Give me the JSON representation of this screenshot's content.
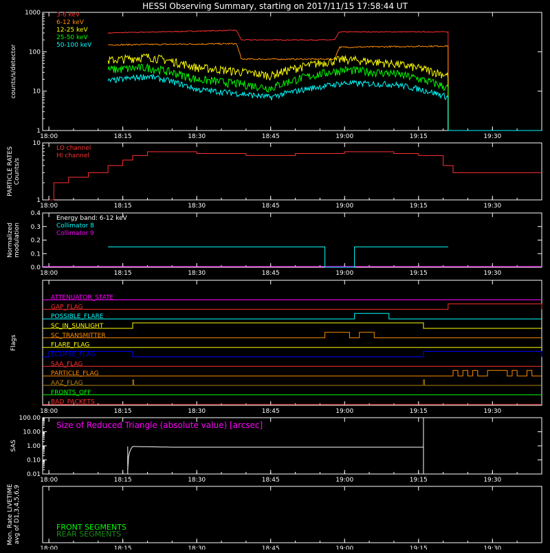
{
  "title": "HESSI Observing Summary, starting on 2017/11/15 17:58:44 UT",
  "time_ticks": [
    "18:00",
    "18:15",
    "18:30",
    "18:45",
    "19:00",
    "19:15",
    "19:30"
  ],
  "chart_data": [
    {
      "type": "line",
      "name": "count-rates",
      "ylabel": "counts/s/detector",
      "yscale": "log",
      "ylim": [
        1,
        1000
      ],
      "yticks": [
        "1",
        "10",
        "100",
        "1000"
      ],
      "series": [
        {
          "name": "3-6 keV",
          "color": "#ff3030",
          "x": [
            "18:12",
            "18:38",
            "18:39",
            "18:58",
            "18:59",
            "19:21",
            "19:21",
            "19:40"
          ],
          "y": [
            300,
            350,
            200,
            200,
            320,
            320,
            1,
            1
          ]
        },
        {
          "name": "6-12 keV",
          "color": "#ff8c00",
          "x": [
            "18:12",
            "18:38",
            "18:39",
            "18:58",
            "18:59",
            "19:21",
            "19:21",
            "19:40"
          ],
          "y": [
            150,
            160,
            65,
            65,
            130,
            140,
            1,
            1
          ]
        },
        {
          "name": "12-25 keV",
          "color": "#ffff00",
          "x": [
            "18:12",
            "18:20",
            "18:30",
            "18:45",
            "19:00",
            "19:10",
            "19:21",
            "19:21",
            "19:40"
          ],
          "y": [
            60,
            75,
            40,
            25,
            65,
            50,
            25,
            1,
            1
          ]
        },
        {
          "name": "25-50 keV",
          "color": "#00ff00",
          "x": [
            "18:12",
            "18:20",
            "18:30",
            "18:45",
            "19:00",
            "19:10",
            "19:21",
            "19:21",
            "19:40"
          ],
          "y": [
            35,
            40,
            20,
            12,
            35,
            28,
            12,
            1,
            1
          ]
        },
        {
          "name": "50-100 keV",
          "color": "#00ffff",
          "x": [
            "18:12",
            "18:20",
            "18:30",
            "18:45",
            "19:00",
            "19:10",
            "19:21",
            "19:21",
            "19:40"
          ],
          "y": [
            18,
            24,
            11,
            7,
            16,
            15,
            7,
            1,
            1
          ]
        }
      ]
    },
    {
      "type": "line",
      "name": "particle-rates",
      "ylabel": "PARTICLE RATES Counts/s",
      "yscale": "log",
      "ylim": [
        1,
        10
      ],
      "yticks": [
        "1",
        "10"
      ],
      "series": [
        {
          "name": "LO channel",
          "color": "#ff3030",
          "x": [],
          "y": []
        },
        {
          "name": "HI channel",
          "color": "#ff3030",
          "x": [
            "18:00",
            "18:01",
            "18:04",
            "18:08",
            "18:12",
            "18:15",
            "18:17",
            "18:20",
            "18:30",
            "18:40",
            "18:50",
            "19:00",
            "19:10",
            "19:15",
            "19:20",
            "19:22",
            "19:30",
            "19:40"
          ],
          "y": [
            1,
            2,
            2.5,
            3,
            4,
            5,
            6,
            7,
            6.5,
            6,
            6.5,
            7,
            6.5,
            6,
            4,
            3,
            3,
            3
          ]
        }
      ]
    },
    {
      "type": "line",
      "name": "modulation",
      "ylabel": "Normalized modulation",
      "ylim": [
        0,
        0.4
      ],
      "yticks": [
        "0.0",
        "0.1",
        "0.2",
        "0.3",
        "0.4"
      ],
      "annotation": "Energy band: 6-12 keV",
      "series": [
        {
          "name": "Collimator 8",
          "color": "#00ffff",
          "x": [
            "18:12",
            "18:56",
            "18:56",
            "19:02",
            "19:02",
            "19:21"
          ],
          "y": [
            0.15,
            0.15,
            0,
            0,
            0.15,
            0.15
          ]
        },
        {
          "name": "Collimator 9",
          "color": "#ff00ff",
          "x": [],
          "y": []
        }
      ]
    },
    {
      "type": "line",
      "name": "flags",
      "ylabel": "Flags",
      "flags": [
        {
          "name": "ATTENUATOR_STATE",
          "color": "#ff00ff",
          "segments": []
        },
        {
          "name": "GAP_FLAG",
          "color": "#ff3030",
          "segments": [
            [
              "19:21",
              "19:40"
            ]
          ]
        },
        {
          "name": "POSSIBLE_FLARE",
          "color": "#00ffff",
          "segments": [
            [
              "19:02",
              "19:09"
            ]
          ]
        },
        {
          "name": "SC_IN_SUNLIGHT",
          "color": "#ffff00",
          "segments": [
            [
              "18:17",
              "19:16"
            ]
          ]
        },
        {
          "name": "SC_TRANSMITTER",
          "color": "#ff8c00",
          "segments": [
            [
              "18:56",
              "19:01"
            ],
            [
              "19:03",
              "19:06"
            ]
          ]
        },
        {
          "name": "FLARE_FLAG",
          "color": "#ffff00",
          "segments": []
        },
        {
          "name": "ECLIPSE_FLAG",
          "color": "#0000ff",
          "segments": [
            [
              "18:00",
              "18:17"
            ],
            [
              "19:16",
              "19:40"
            ]
          ]
        },
        {
          "name": "SAA_FLAG",
          "color": "#ff3030",
          "segments": []
        },
        {
          "name": "PARTICLE_FLAG",
          "color": "#ff8c00",
          "segments": [
            [
              "19:22",
              "19:23"
            ],
            [
              "19:24",
              "19:25"
            ],
            [
              "19:26",
              "19:27"
            ],
            [
              "19:29",
              "19:33"
            ],
            [
              "19:34",
              "19:35"
            ],
            [
              "19:37",
              "19:38"
            ]
          ]
        },
        {
          "name": "AAZ_FLAG",
          "color": "#b8860b",
          "segments": [
            [
              "18:17",
              "18:17"
            ],
            [
              "19:16",
              "19:16"
            ]
          ]
        },
        {
          "name": "FRONTS_OFF",
          "color": "#00ff00",
          "segments": []
        },
        {
          "name": "BAD_PACKETS",
          "color": "#ff3030",
          "segments": []
        }
      ]
    },
    {
      "type": "line",
      "name": "sas",
      "ylabel": "SAS",
      "yscale": "log",
      "ylim": [
        0.01,
        100
      ],
      "yticks": [
        "0.01",
        "0.10",
        "1.00",
        "10.00",
        "100.00"
      ],
      "annotation": "Size of Reduced Triangle (absolute value) [arcsec]",
      "series": [
        {
          "name": "",
          "color": "#ffffff",
          "x": [
            "18:16",
            "18:17",
            "18:25",
            "18:40",
            "19:00",
            "19:10",
            "19:16"
          ],
          "y": [
            0.02,
            0.9,
            0.8,
            0.8,
            0.8,
            0.8,
            0.8
          ]
        }
      ]
    },
    {
      "type": "line",
      "name": "livetime",
      "ylabel": "Mon. Rate LIVETIME avg of D1,3,4,5,6,9",
      "series": [
        {
          "name": "FRONT SEGMENTS",
          "color": "#00ff00",
          "x": [],
          "y": []
        },
        {
          "name": "REAR SEGMENTS",
          "color": "#1a8c1a",
          "x": [],
          "y": []
        }
      ]
    }
  ]
}
